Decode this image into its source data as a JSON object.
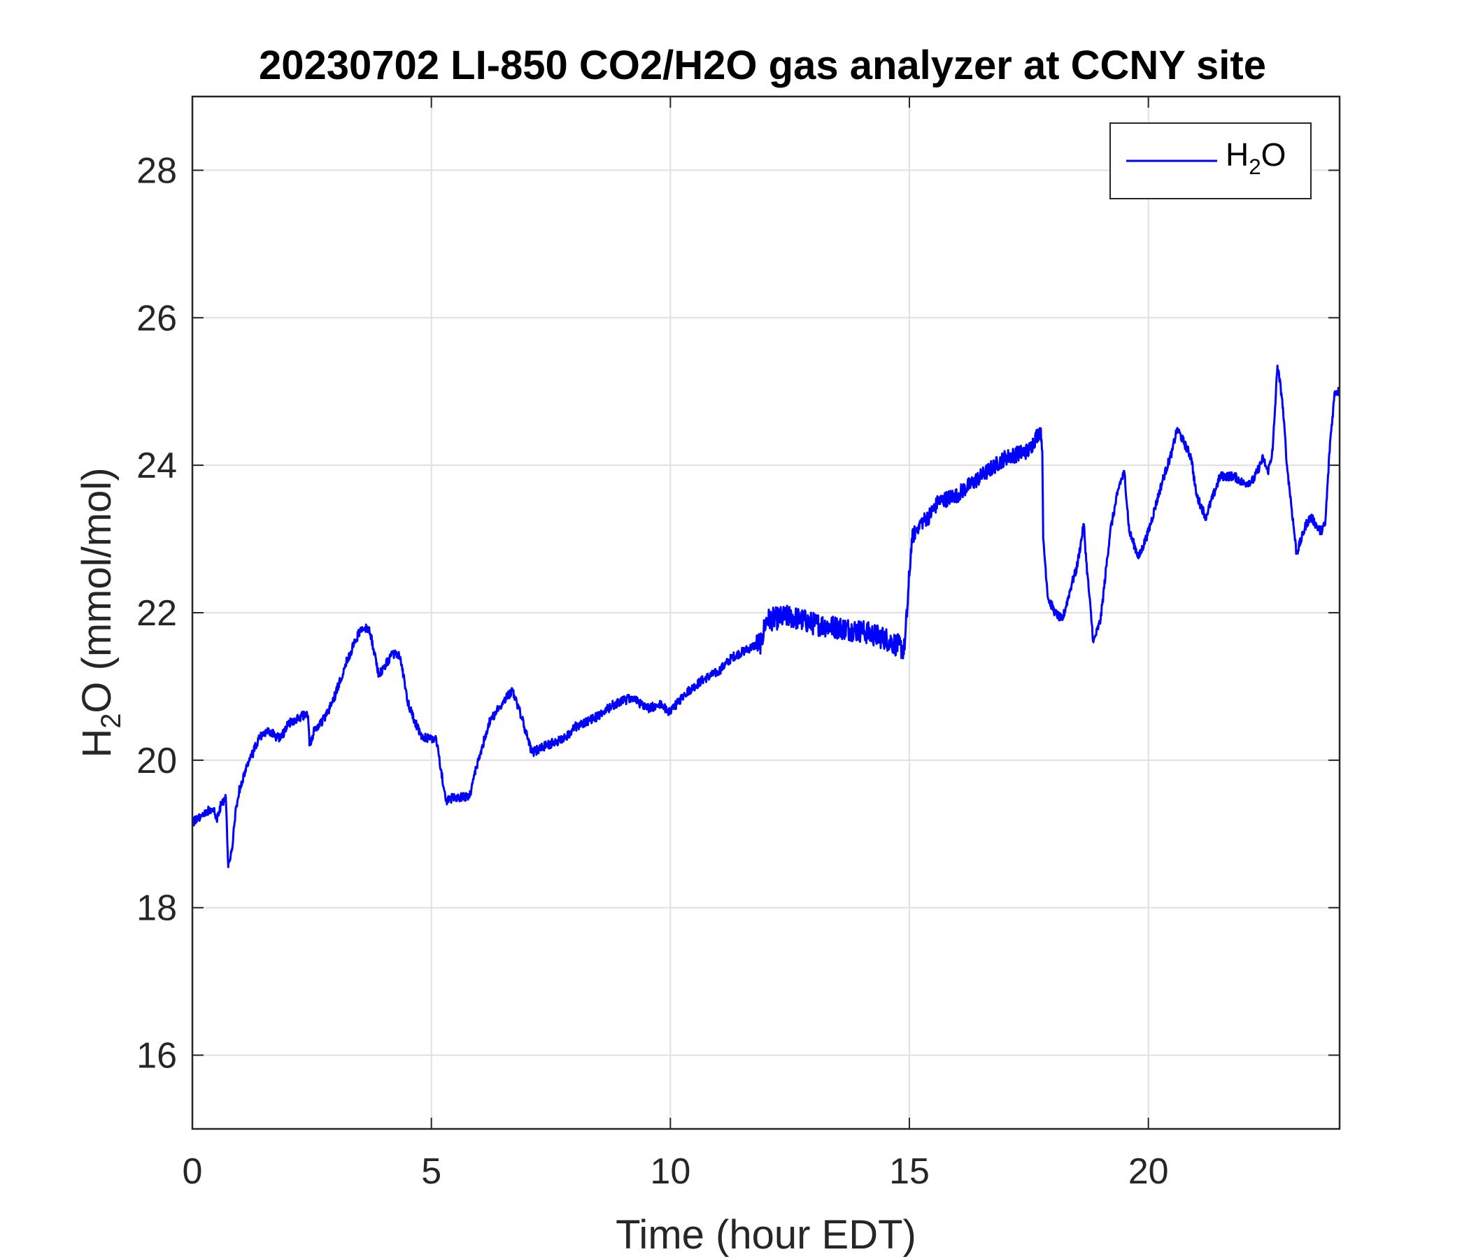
{
  "chart_data": {
    "type": "line",
    "title": "20230702 LI-850 CO2/H2O gas analyzer at CCNY site",
    "xlabel": "Time (hour EDT)",
    "ylabel": {
      "prefix": "H",
      "subscript": "2",
      "suffix": "O (mmol/mol)"
    },
    "xlim": [
      0,
      24
    ],
    "ylim": [
      15,
      29
    ],
    "x_ticks": [
      0,
      5,
      10,
      15,
      20
    ],
    "y_ticks": [
      16,
      18,
      20,
      22,
      24,
      26,
      28
    ],
    "grid": true,
    "legend_position": "top-right",
    "series": [
      {
        "name": {
          "prefix": "H",
          "subscript": "2",
          "suffix": "O"
        },
        "color": "#0000ff",
        "noise_amplitude": 0.06,
        "x": [
          0,
          0.1,
          0.3,
          0.45,
          0.5,
          0.55,
          0.6,
          0.7,
          0.73,
          0.75,
          0.8,
          0.85,
          0.9,
          1.0,
          1.2,
          1.4,
          1.6,
          1.8,
          1.95,
          2.0,
          2.3,
          2.42,
          2.45,
          2.55,
          2.8,
          3.0,
          3.2,
          3.5,
          3.7,
          3.9,
          4.2,
          4.35,
          4.5,
          4.7,
          4.8,
          5.0,
          5.1,
          5.3,
          5.5,
          5.8,
          5.9,
          6.2,
          6.5,
          6.7,
          6.9,
          7.1,
          7.4,
          7.8,
          8.0,
          8.5,
          8.8,
          9.0,
          9.2,
          9.5,
          9.8,
          10.0,
          10.3,
          10.7,
          11.0,
          11.3,
          11.6,
          11.9,
          12.0,
          12.5,
          13.0,
          13.5,
          14.0,
          14.5,
          14.9,
          15.0,
          15.05,
          15.2,
          15.4,
          15.6,
          16.0,
          16.5,
          17.0,
          17.5,
          17.75,
          17.78,
          17.8,
          17.9,
          18.05,
          18.2,
          18.4,
          18.5,
          18.65,
          18.7,
          18.85,
          19.0,
          19.2,
          19.35,
          19.4,
          19.5,
          19.6,
          19.8,
          20.0,
          20.3,
          20.5,
          20.6,
          20.9,
          21.0,
          21.2,
          21.5,
          21.8,
          22.0,
          22.2,
          22.4,
          22.5,
          22.6,
          22.7,
          22.8,
          22.9,
          23.0,
          23.1,
          23.3,
          23.4,
          23.6,
          23.7,
          23.8,
          23.9,
          24.0
        ],
        "y": [
          19.15,
          19.2,
          19.3,
          19.35,
          19.2,
          19.25,
          19.4,
          19.5,
          18.9,
          18.55,
          18.7,
          18.9,
          19.3,
          19.65,
          20.0,
          20.3,
          20.4,
          20.3,
          20.4,
          20.5,
          20.6,
          20.6,
          20.2,
          20.4,
          20.6,
          20.9,
          21.3,
          21.75,
          21.8,
          21.15,
          21.45,
          21.4,
          20.8,
          20.45,
          20.3,
          20.3,
          20.3,
          19.45,
          19.5,
          19.5,
          19.8,
          20.5,
          20.8,
          20.95,
          20.55,
          20.1,
          20.2,
          20.3,
          20.45,
          20.6,
          20.75,
          20.8,
          20.85,
          20.7,
          20.75,
          20.65,
          20.9,
          21.1,
          21.2,
          21.4,
          21.5,
          21.6,
          21.9,
          21.95,
          21.85,
          21.8,
          21.75,
          21.65,
          21.5,
          22.5,
          23.0,
          23.2,
          23.3,
          23.5,
          23.6,
          23.85,
          24.1,
          24.2,
          24.5,
          24.2,
          23.0,
          22.2,
          22.0,
          21.9,
          22.4,
          22.6,
          23.2,
          22.7,
          21.6,
          21.9,
          23.1,
          23.6,
          23.75,
          23.9,
          23.1,
          22.75,
          23.1,
          23.8,
          24.2,
          24.5,
          24.1,
          23.6,
          23.3,
          23.85,
          23.85,
          23.75,
          23.8,
          24.1,
          23.9,
          24.2,
          25.35,
          24.9,
          24.0,
          23.4,
          22.8,
          23.2,
          23.3,
          23.1,
          23.2,
          24.3,
          25.0,
          25.0
        ]
      }
    ]
  }
}
